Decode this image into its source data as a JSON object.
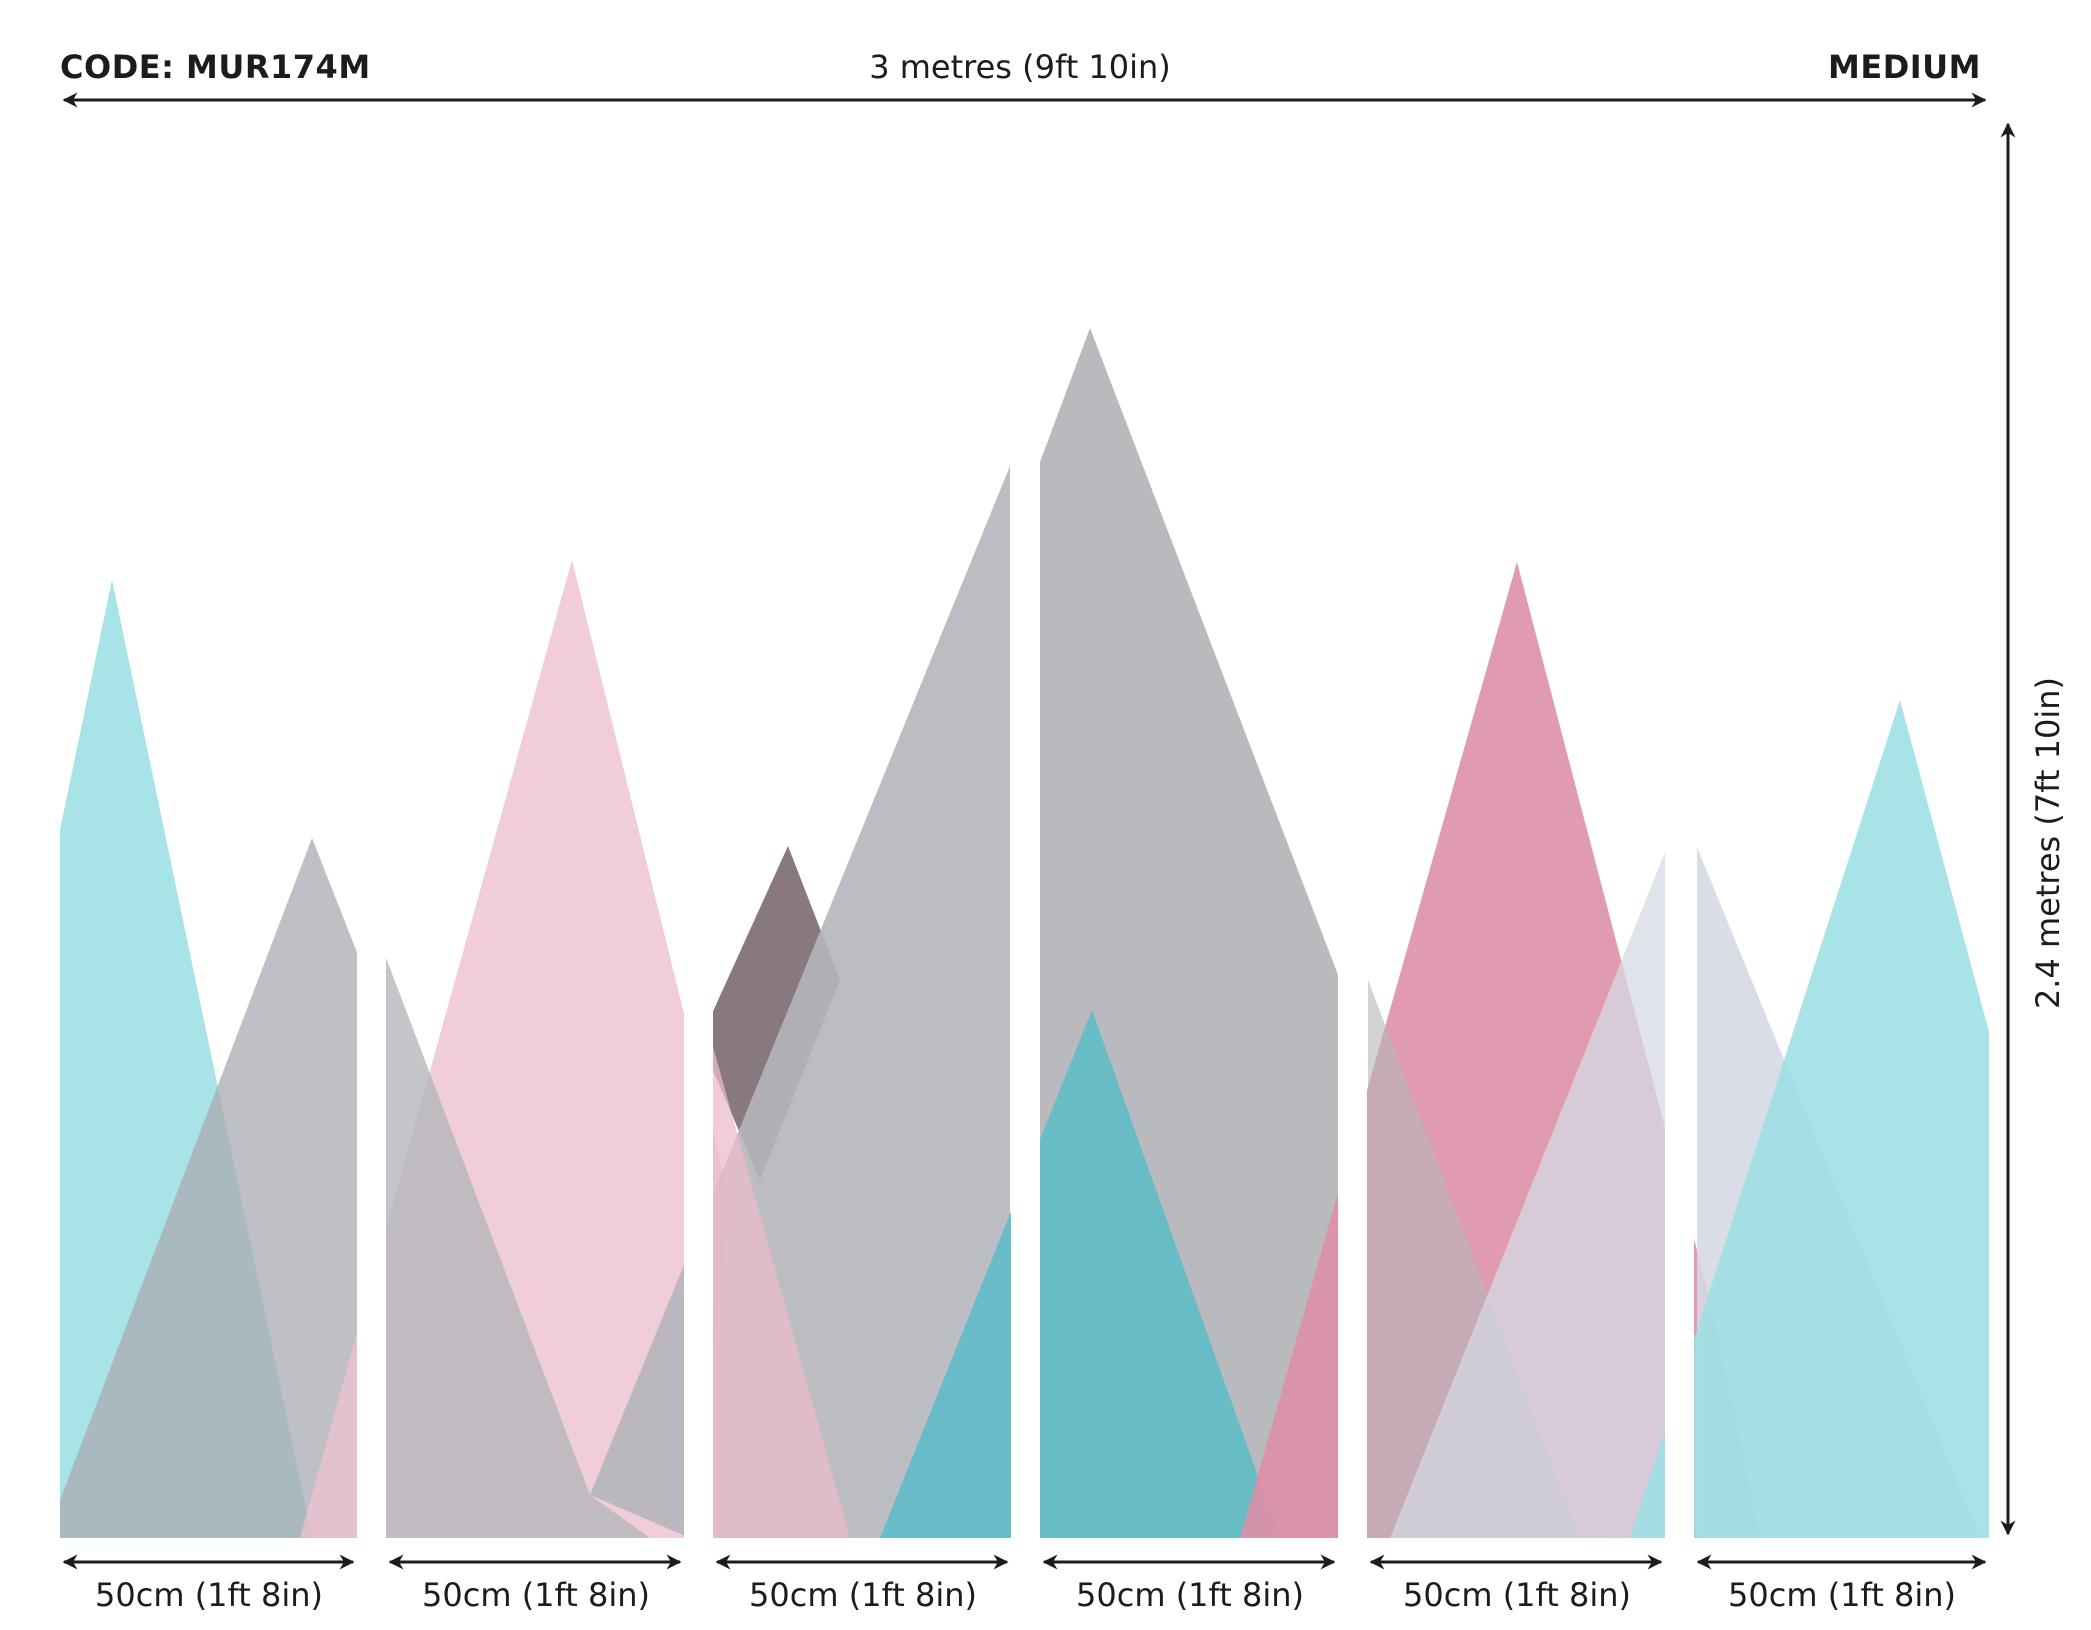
{
  "header": {
    "code": "CODE: MUR174M",
    "width_dimension": "3 metres (9ft 10in)",
    "size": "MEDIUM"
  },
  "side": {
    "height_dimension": "2.4 metres (7ft 10in)"
  },
  "panels": [
    {
      "label": "50cm (1ft 8in)"
    },
    {
      "label": "50cm (1ft 8in)"
    },
    {
      "label": "50cm (1ft 8in)"
    },
    {
      "label": "50cm (1ft 8in)"
    },
    {
      "label": "50cm (1ft 8in)"
    },
    {
      "label": "50cm (1ft 8in)"
    }
  ],
  "colors": {
    "cyan": "#9fe0e6",
    "grey": "#b4b6bb",
    "pink": "#eec6d4",
    "dark_mauve": "#8a7a80",
    "teal": "#5fbdc8",
    "rose": "#dd90a7",
    "pale_lavender": "#d5d9e3",
    "arrow": "#1c1c1c"
  }
}
